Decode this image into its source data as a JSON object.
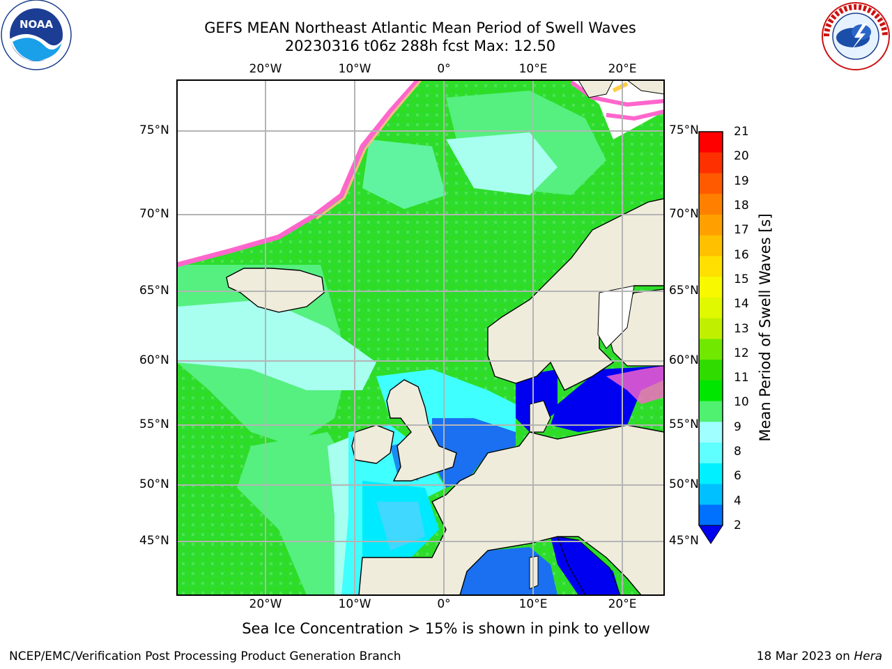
{
  "title": {
    "line1": "GEFS MEAN Northeast Atlantic Mean Period of Swell Waves",
    "line2": "20230316 t06z 288h fcst   Max: 12.50"
  },
  "logos": {
    "noaa_text": "NOAA",
    "noaa_ring": "NATIONAL OCEANIC AND ATMOSPHERIC ADMINISTRATION · U.S. DEPARTMENT OF COMMERCE",
    "nws_ring": "NATIONAL WEATHER SERVICE"
  },
  "map": {
    "lon_labels": [
      "20°W",
      "10°W",
      "0°",
      "10°E",
      "20°E"
    ],
    "lat_labels": [
      "75°N",
      "70°N",
      "65°N",
      "60°N",
      "55°N",
      "50°N",
      "45°N"
    ],
    "grid": true
  },
  "colorbar": {
    "label": "Mean Period of Swell Waves [s]",
    "ticks": [
      "21",
      "20",
      "19",
      "18",
      "17",
      "16",
      "15",
      "14",
      "13",
      "12",
      "11",
      "10",
      "9",
      "8",
      "6",
      "4",
      "2"
    ],
    "colors": [
      "#ff0000",
      "#ff3000",
      "#ff5a00",
      "#ff8000",
      "#ffa000",
      "#ffc000",
      "#ffe000",
      "#f8f800",
      "#e0f800",
      "#c0f000",
      "#70e800",
      "#30dc00",
      "#00e600",
      "#50f070",
      "#a0ffff",
      "#60ffff",
      "#00f0ff",
      "#00c0ff",
      "#0070ff"
    ],
    "extend": "min",
    "extend_color": "#0000f0"
  },
  "colors": {
    "land": "#efecdc",
    "ice": "#ffffff",
    "ice_edge": "#ff66cc",
    "grid": "#b4b4b4"
  },
  "note": "Sea Ice Concentration > 15% is shown in pink to yellow",
  "footer": {
    "left": "NCEP/EMC/Verification Post Processing Product Generation Branch",
    "right_date": "18 Mar 2023 on ",
    "right_host": "Hera"
  }
}
